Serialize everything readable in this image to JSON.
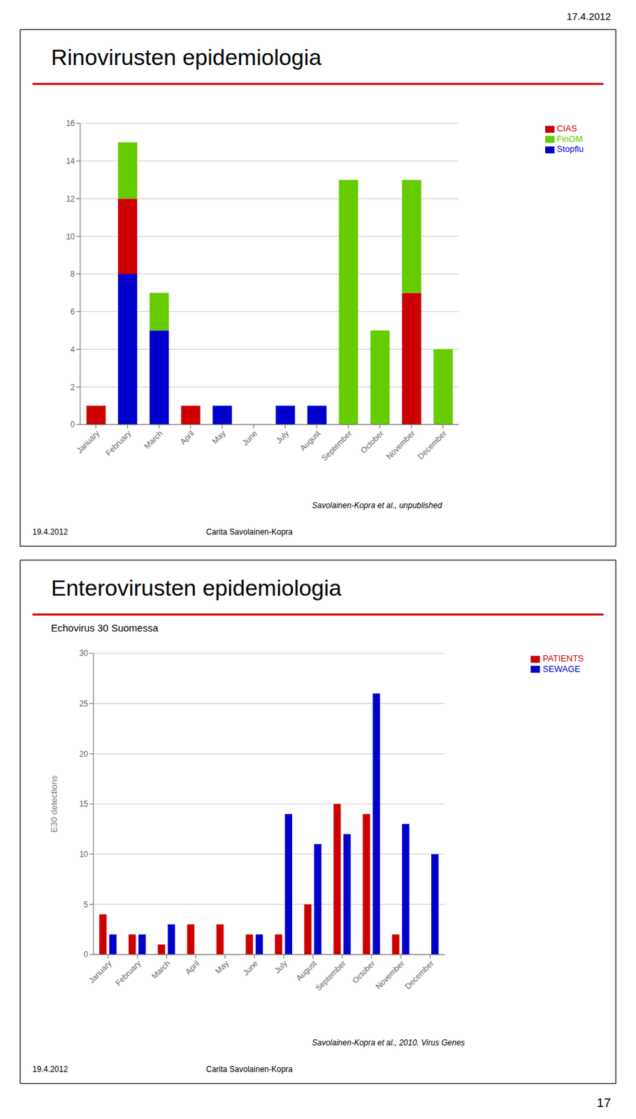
{
  "chart_data": [
    {
      "type": "bar",
      "title": "Rinovirusten epidemiologia",
      "categories": [
        "January",
        "February",
        "March",
        "April",
        "May",
        "June",
        "July",
        "August",
        "September",
        "October",
        "November",
        "December"
      ],
      "series": [
        {
          "name": "Stopflu",
          "color": "#0000CC",
          "values": [
            0,
            8,
            5,
            0,
            1,
            0,
            1,
            1,
            0,
            0,
            0,
            0
          ]
        },
        {
          "name": "CIAS",
          "color": "#CC0000",
          "values": [
            1,
            4,
            0,
            1,
            0,
            0,
            0,
            0,
            0,
            0,
            7,
            0
          ]
        },
        {
          "name": "FinOM",
          "color": "#66CC00",
          "values": [
            0,
            3,
            2,
            0,
            0,
            0,
            0,
            0,
            13,
            5,
            6,
            4
          ]
        }
      ],
      "stacked": true,
      "ylim": [
        0,
        16
      ],
      "yticks": [
        0,
        2,
        4,
        6,
        8,
        10,
        12,
        14,
        16
      ],
      "grid": true,
      "legend": "upper right",
      "annotations": [
        "Savolainen-Kopra et al., unpublished",
        "19.4.2012",
        "Carita Savolainen-Kopra",
        "17.4.2012"
      ]
    },
    {
      "type": "bar",
      "title": "Enterovirusten epidemiologia",
      "subtitle": "Echovirus 30 Suomessa",
      "categories": [
        "January",
        "February",
        "March",
        "April",
        "May",
        "June",
        "July",
        "August",
        "September",
        "October",
        "November",
        "December"
      ],
      "series": [
        {
          "name": "PATIENTS",
          "color": "#CC0000",
          "values": [
            4,
            2,
            1,
            3,
            3,
            2,
            2,
            5,
            15,
            14,
            2,
            0
          ]
        },
        {
          "name": "SEWAGE",
          "color": "#0000CC",
          "values": [
            2,
            2,
            3,
            0,
            0,
            2,
            14,
            11,
            12,
            26,
            13,
            10
          ]
        }
      ],
      "ylabel": "E30 detections",
      "ylim": [
        0,
        30
      ],
      "yticks": [
        0,
        5,
        10,
        15,
        20,
        25,
        30
      ],
      "grid": true,
      "legend": "upper right",
      "annotations": [
        "Savolainen-Kopra et al., 2010. Virus Genes",
        "19.4.2012",
        "Carita Savolainen-Kopra",
        "17"
      ]
    }
  ]
}
